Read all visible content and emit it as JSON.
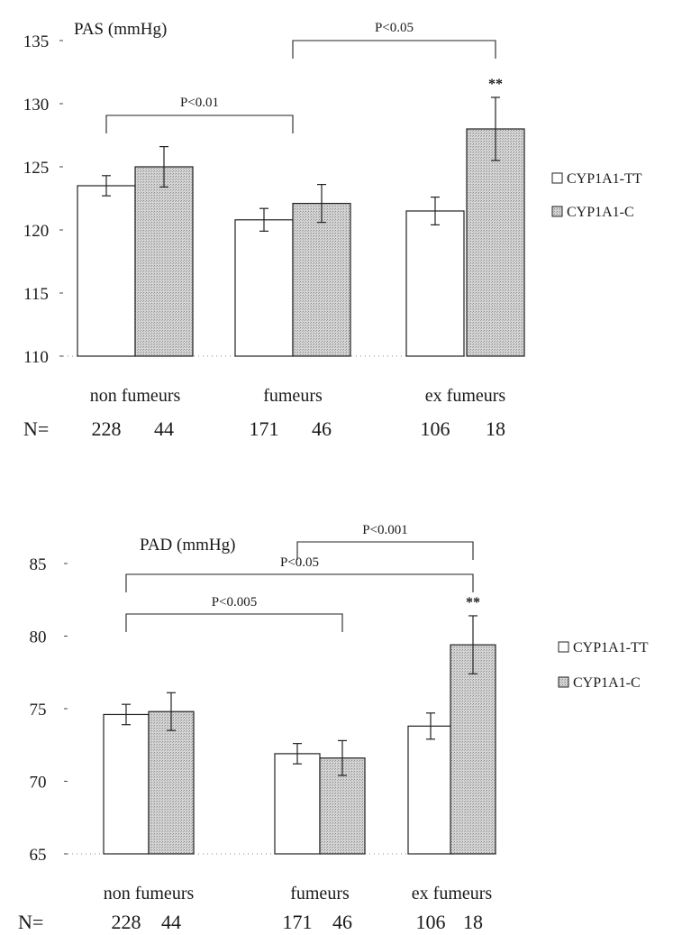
{
  "chart_data": [
    {
      "type": "bar",
      "ylabel": "PAS (mmHg)",
      "ylim": [
        110,
        135
      ],
      "yticks": [
        "135",
        "130",
        "125",
        "120",
        "115",
        "110"
      ],
      "categories": [
        "non fumeurs",
        "fumeurs",
        "ex fumeurs"
      ],
      "n_prefix": "N=",
      "n_counts": [
        [
          "228",
          "44"
        ],
        [
          "171",
          "46"
        ],
        [
          "106",
          "18"
        ]
      ],
      "legend_position": "right",
      "series": [
        {
          "name": "CYP1A1-TT",
          "color": "#ffffff",
          "values": [
            123.5,
            120.8,
            121.5
          ],
          "err": [
            0.8,
            0.9,
            1.1
          ]
        },
        {
          "name": "CYP1A1-C",
          "color": "#c8c8c8",
          "values": [
            125.0,
            122.1,
            128.0
          ],
          "err": [
            1.6,
            1.5,
            2.5
          ]
        }
      ],
      "significance": [
        {
          "label": "P<0.01",
          "from": "non fumeurs",
          "to": "fumeurs"
        },
        {
          "label": "P<0.05",
          "from": "fumeurs",
          "to": "ex fumeurs"
        }
      ],
      "annotations": [
        {
          "label": "**",
          "category": "ex fumeurs",
          "series": "CYP1A1-C"
        }
      ]
    },
    {
      "type": "bar",
      "ylabel": "PAD (mmHg)",
      "ylim": [
        65,
        85
      ],
      "yticks": [
        "85",
        "80",
        "75",
        "70",
        "65"
      ],
      "categories": [
        "non fumeurs",
        "fumeurs",
        "ex fumeurs"
      ],
      "n_prefix": "N=",
      "n_counts": [
        [
          "228",
          "44"
        ],
        [
          "171",
          "46"
        ],
        [
          "106",
          "18"
        ]
      ],
      "legend_position": "right",
      "series": [
        {
          "name": "CYP1A1-TT",
          "color": "#ffffff",
          "values": [
            74.6,
            71.9,
            73.8
          ],
          "err": [
            0.7,
            0.7,
            0.9
          ]
        },
        {
          "name": "CYP1A1-C",
          "color": "#c8c8c8",
          "values": [
            74.8,
            71.6,
            79.4
          ],
          "err": [
            1.3,
            1.2,
            2.0
          ]
        }
      ],
      "significance": [
        {
          "label": "P<0.005",
          "from": "non fumeurs",
          "to": "fumeurs"
        },
        {
          "label": "P<0.05",
          "from": "non fumeurs",
          "to": "ex fumeurs"
        },
        {
          "label": "P<0.001",
          "from": "fumeurs",
          "to": "ex fumeurs"
        }
      ],
      "annotations": [
        {
          "label": "**",
          "category": "ex fumeurs",
          "series": "CYP1A1-C"
        }
      ]
    }
  ]
}
